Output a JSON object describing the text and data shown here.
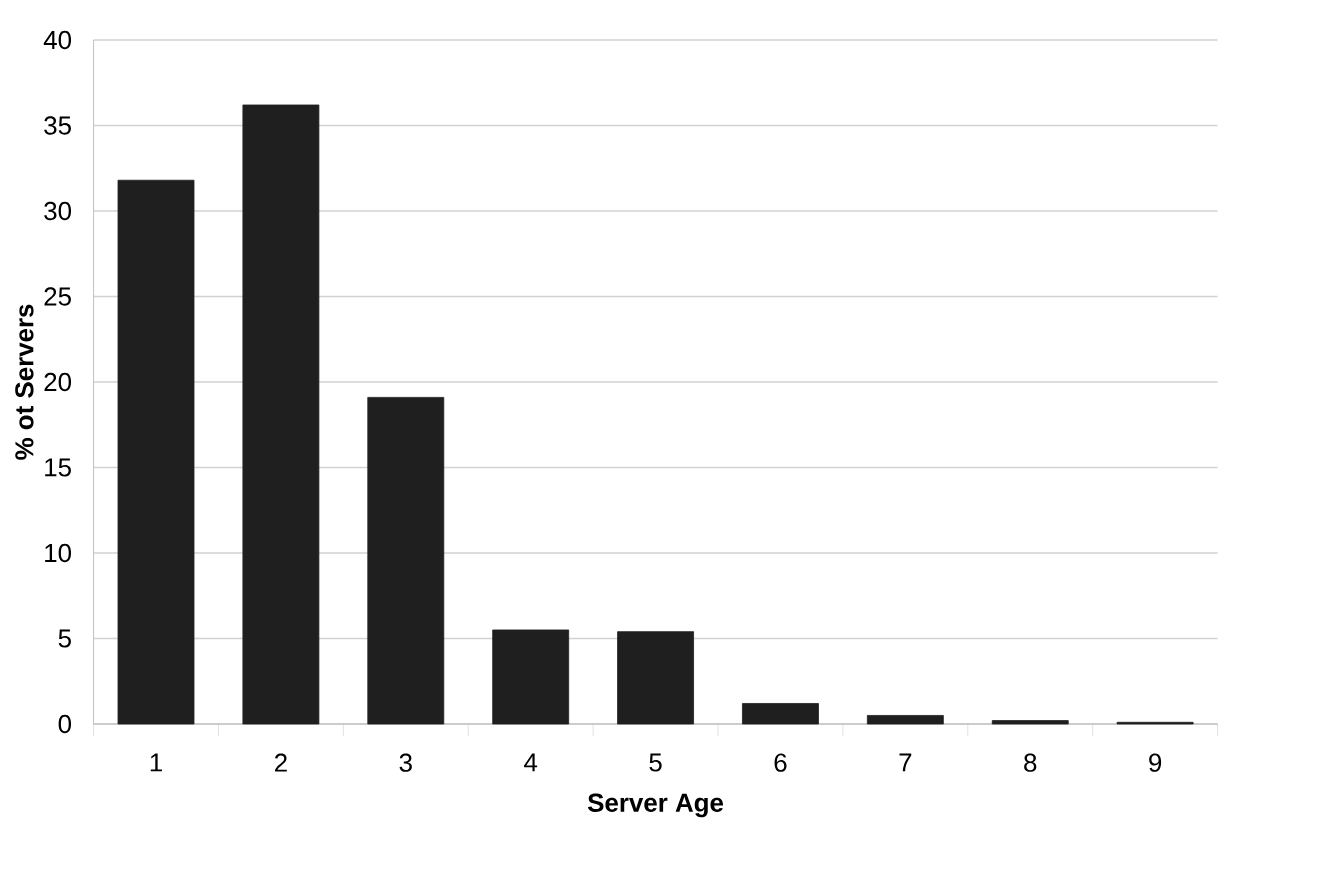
{
  "chart_data": {
    "type": "bar",
    "xlabel": "Server Age",
    "ylabel": "% ot Servers",
    "categories": [
      "1",
      "2",
      "3",
      "4",
      "5",
      "6",
      "7",
      "8",
      "9"
    ],
    "values": [
      31.8,
      36.2,
      19.1,
      5.5,
      5.4,
      1.2,
      0.5,
      0.2,
      0.1
    ],
    "color": "#1f1f1f",
    "ylim": [
      0,
      40
    ],
    "yticks": [
      0,
      5,
      10,
      15,
      20,
      25,
      30,
      35,
      40
    ],
    "grid": "y"
  }
}
